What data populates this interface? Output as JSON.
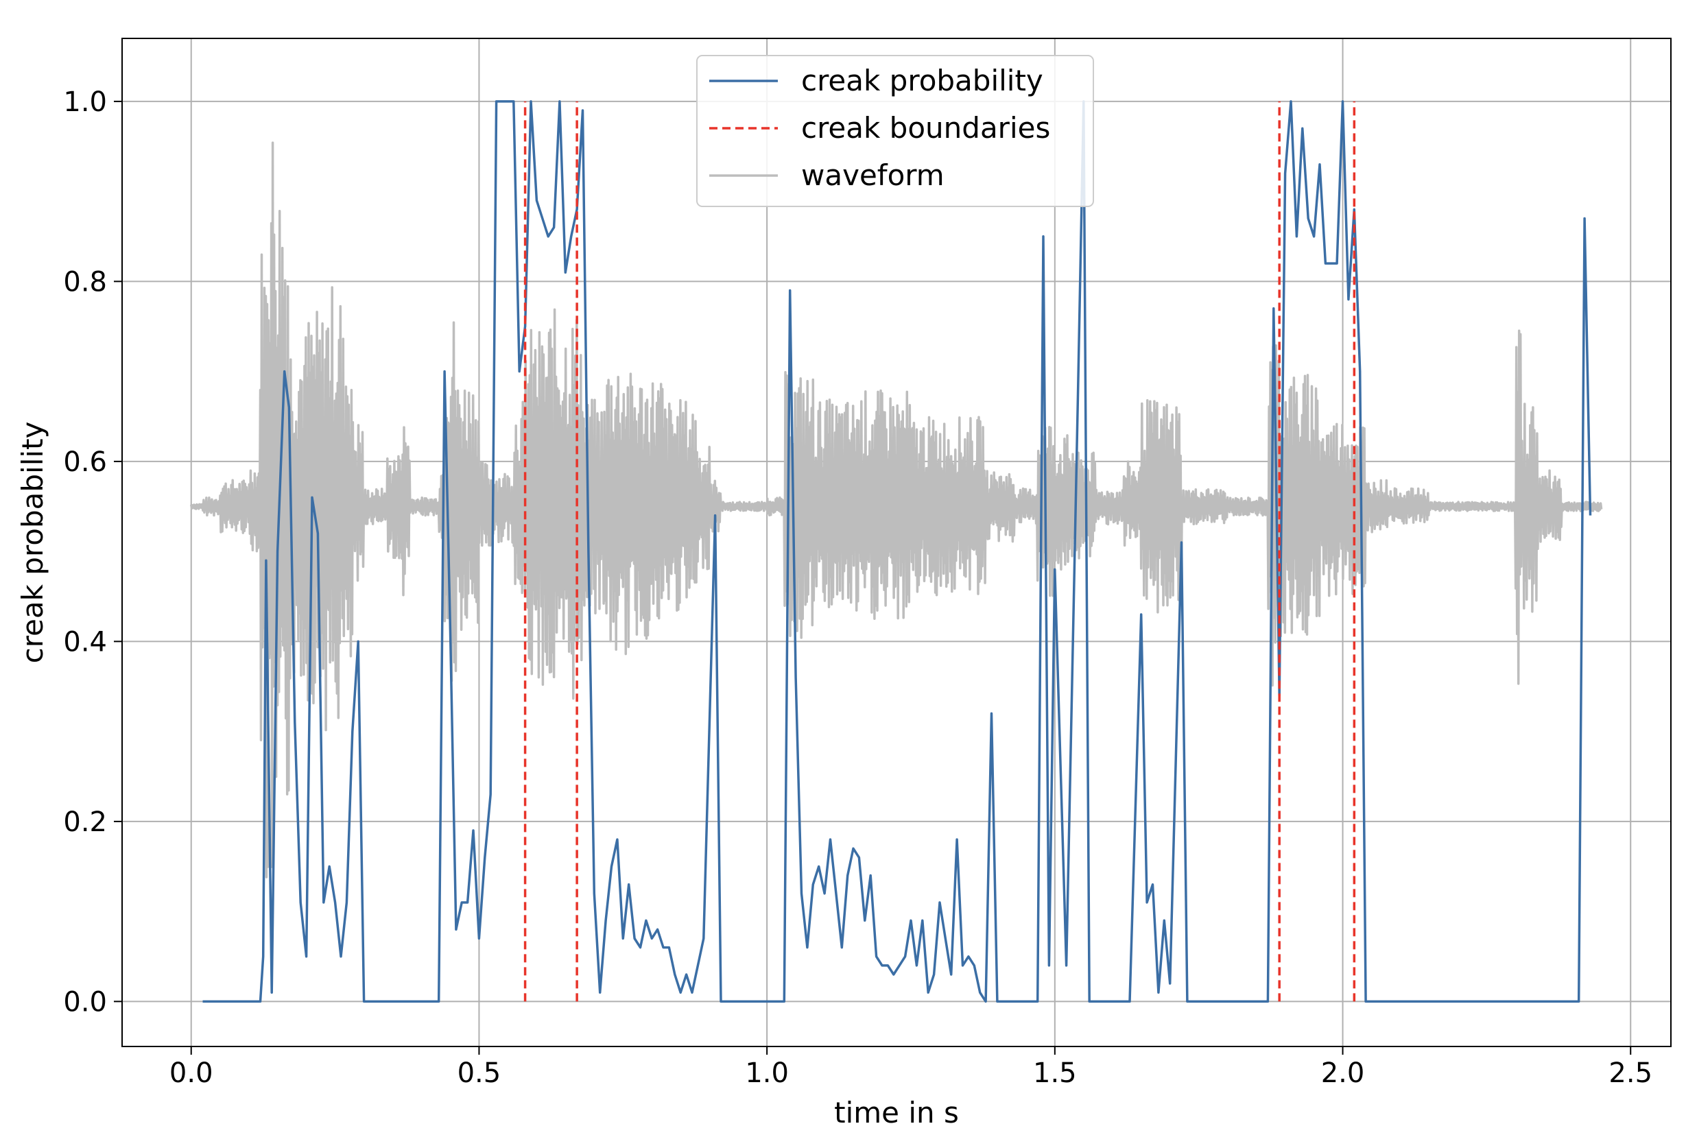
{
  "chart_data": {
    "type": "line",
    "xlabel": "time in s",
    "ylabel": "creak probability",
    "xlim": [
      -0.12,
      2.57
    ],
    "ylim": [
      -0.05,
      1.07
    ],
    "x_ticks": [
      0.0,
      0.5,
      1.0,
      1.5,
      2.0,
      2.5
    ],
    "x_tick_labels": [
      "0.0",
      "0.5",
      "1.0",
      "1.5",
      "2.0",
      "2.5"
    ],
    "y_ticks": [
      0.0,
      0.2,
      0.4,
      0.6,
      0.8,
      1.0
    ],
    "y_tick_labels": [
      "0.0",
      "0.2",
      "0.4",
      "0.6",
      "0.8",
      "1.0"
    ],
    "grid": true,
    "legend_position": "top-center",
    "legend": [
      "creak probability",
      "creak boundaries",
      "waveform"
    ],
    "series": [
      {
        "name": "creak probability",
        "style": "solid",
        "color": "#3b6ea5",
        "points": [
          [
            0.02,
            0.0
          ],
          [
            0.12,
            0.0
          ],
          [
            0.125,
            0.05
          ],
          [
            0.13,
            0.49
          ],
          [
            0.14,
            0.01
          ],
          [
            0.15,
            0.5
          ],
          [
            0.162,
            0.7
          ],
          [
            0.17,
            0.66
          ],
          [
            0.18,
            0.31
          ],
          [
            0.19,
            0.11
          ],
          [
            0.2,
            0.05
          ],
          [
            0.21,
            0.56
          ],
          [
            0.22,
            0.52
          ],
          [
            0.23,
            0.11
          ],
          [
            0.24,
            0.15
          ],
          [
            0.25,
            0.11
          ],
          [
            0.26,
            0.05
          ],
          [
            0.27,
            0.11
          ],
          [
            0.28,
            0.3
          ],
          [
            0.29,
            0.4
          ],
          [
            0.3,
            0.0
          ],
          [
            0.43,
            0.0
          ],
          [
            0.44,
            0.7
          ],
          [
            0.45,
            0.41
          ],
          [
            0.46,
            0.08
          ],
          [
            0.47,
            0.11
          ],
          [
            0.48,
            0.11
          ],
          [
            0.49,
            0.19
          ],
          [
            0.5,
            0.07
          ],
          [
            0.51,
            0.16
          ],
          [
            0.52,
            0.23
          ],
          [
            0.53,
            1.0
          ],
          [
            0.55,
            1.0
          ],
          [
            0.56,
            1.0
          ],
          [
            0.57,
            0.7
          ],
          [
            0.58,
            0.75
          ],
          [
            0.59,
            1.0
          ],
          [
            0.6,
            0.89
          ],
          [
            0.61,
            0.87
          ],
          [
            0.62,
            0.85
          ],
          [
            0.63,
            0.86
          ],
          [
            0.64,
            1.0
          ],
          [
            0.65,
            0.81
          ],
          [
            0.66,
            0.85
          ],
          [
            0.67,
            0.88
          ],
          [
            0.68,
            0.99
          ],
          [
            0.69,
            0.5
          ],
          [
            0.7,
            0.12
          ],
          [
            0.71,
            0.01
          ],
          [
            0.72,
            0.09
          ],
          [
            0.73,
            0.15
          ],
          [
            0.74,
            0.18
          ],
          [
            0.75,
            0.07
          ],
          [
            0.76,
            0.13
          ],
          [
            0.77,
            0.07
          ],
          [
            0.78,
            0.06
          ],
          [
            0.79,
            0.09
          ],
          [
            0.8,
            0.07
          ],
          [
            0.81,
            0.08
          ],
          [
            0.82,
            0.06
          ],
          [
            0.83,
            0.06
          ],
          [
            0.84,
            0.03
          ],
          [
            0.85,
            0.01
          ],
          [
            0.86,
            0.03
          ],
          [
            0.87,
            0.01
          ],
          [
            0.88,
            0.04
          ],
          [
            0.89,
            0.07
          ],
          [
            0.91,
            0.54
          ],
          [
            0.92,
            0.0
          ],
          [
            1.03,
            0.0
          ],
          [
            1.04,
            0.79
          ],
          [
            1.05,
            0.36
          ],
          [
            1.06,
            0.12
          ],
          [
            1.07,
            0.06
          ],
          [
            1.08,
            0.13
          ],
          [
            1.09,
            0.15
          ],
          [
            1.1,
            0.12
          ],
          [
            1.11,
            0.18
          ],
          [
            1.12,
            0.12
          ],
          [
            1.13,
            0.06
          ],
          [
            1.14,
            0.14
          ],
          [
            1.15,
            0.17
          ],
          [
            1.16,
            0.16
          ],
          [
            1.17,
            0.09
          ],
          [
            1.18,
            0.14
          ],
          [
            1.19,
            0.05
          ],
          [
            1.2,
            0.04
          ],
          [
            1.21,
            0.04
          ],
          [
            1.22,
            0.03
          ],
          [
            1.23,
            0.04
          ],
          [
            1.24,
            0.05
          ],
          [
            1.25,
            0.09
          ],
          [
            1.26,
            0.04
          ],
          [
            1.27,
            0.09
          ],
          [
            1.28,
            0.01
          ],
          [
            1.29,
            0.03
          ],
          [
            1.3,
            0.11
          ],
          [
            1.31,
            0.07
          ],
          [
            1.32,
            0.03
          ],
          [
            1.33,
            0.18
          ],
          [
            1.34,
            0.04
          ],
          [
            1.35,
            0.05
          ],
          [
            1.36,
            0.04
          ],
          [
            1.37,
            0.01
          ],
          [
            1.38,
            0.0
          ],
          [
            1.39,
            0.32
          ],
          [
            1.4,
            0.0
          ],
          [
            1.47,
            0.0
          ],
          [
            1.48,
            0.85
          ],
          [
            1.49,
            0.04
          ],
          [
            1.5,
            0.48
          ],
          [
            1.52,
            0.04
          ],
          [
            1.54,
            0.67
          ],
          [
            1.55,
            1.0
          ],
          [
            1.56,
            0.0
          ],
          [
            1.63,
            0.0
          ],
          [
            1.65,
            0.43
          ],
          [
            1.66,
            0.11
          ],
          [
            1.67,
            0.13
          ],
          [
            1.68,
            0.01
          ],
          [
            1.69,
            0.09
          ],
          [
            1.7,
            0.02
          ],
          [
            1.72,
            0.51
          ],
          [
            1.73,
            0.0
          ],
          [
            1.87,
            0.0
          ],
          [
            1.88,
            0.77
          ],
          [
            1.89,
            0.34
          ],
          [
            1.9,
            0.92
          ],
          [
            1.91,
            1.0
          ],
          [
            1.92,
            0.85
          ],
          [
            1.93,
            0.97
          ],
          [
            1.94,
            0.87
          ],
          [
            1.95,
            0.85
          ],
          [
            1.96,
            0.93
          ],
          [
            1.97,
            0.82
          ],
          [
            1.98,
            0.82
          ],
          [
            1.99,
            0.82
          ],
          [
            2.0,
            1.0
          ],
          [
            2.01,
            0.78
          ],
          [
            2.02,
            0.88
          ],
          [
            2.03,
            0.7
          ],
          [
            2.04,
            0.0
          ],
          [
            2.41,
            0.0
          ],
          [
            2.42,
            0.87
          ],
          [
            2.43,
            0.54
          ]
        ]
      },
      {
        "name": "creak boundaries",
        "style": "dashed",
        "color": "#e8342a",
        "x_positions": [
          0.58,
          0.67,
          1.89,
          2.02
        ]
      },
      {
        "name": "waveform",
        "style": "solid",
        "color": "#bdbdbd",
        "baseline": 0.55,
        "segments": [
          [
            0.0,
            0.02,
            0.003
          ],
          [
            0.02,
            0.05,
            0.01
          ],
          [
            0.05,
            0.1,
            0.03
          ],
          [
            0.1,
            0.12,
            0.05
          ],
          [
            0.12,
            0.13,
            0.3
          ],
          [
            0.13,
            0.15,
            0.45
          ],
          [
            0.15,
            0.17,
            0.38
          ],
          [
            0.17,
            0.2,
            0.2
          ],
          [
            0.2,
            0.23,
            0.22
          ],
          [
            0.23,
            0.26,
            0.25
          ],
          [
            0.26,
            0.28,
            0.2
          ],
          [
            0.28,
            0.3,
            0.1
          ],
          [
            0.3,
            0.34,
            0.02
          ],
          [
            0.34,
            0.36,
            0.06
          ],
          [
            0.36,
            0.38,
            0.1
          ],
          [
            0.38,
            0.43,
            0.01
          ],
          [
            0.43,
            0.44,
            0.05
          ],
          [
            0.44,
            0.46,
            0.22
          ],
          [
            0.46,
            0.5,
            0.15
          ],
          [
            0.5,
            0.52,
            0.05
          ],
          [
            0.52,
            0.56,
            0.04
          ],
          [
            0.56,
            0.58,
            0.12
          ],
          [
            0.58,
            0.62,
            0.2
          ],
          [
            0.62,
            0.68,
            0.22
          ],
          [
            0.68,
            0.72,
            0.12
          ],
          [
            0.72,
            0.76,
            0.17
          ],
          [
            0.76,
            0.82,
            0.15
          ],
          [
            0.82,
            0.88,
            0.12
          ],
          [
            0.88,
            0.9,
            0.07
          ],
          [
            0.9,
            0.92,
            0.03
          ],
          [
            0.92,
            1.0,
            0.005
          ],
          [
            1.0,
            1.03,
            0.01
          ],
          [
            1.03,
            1.08,
            0.15
          ],
          [
            1.08,
            1.15,
            0.12
          ],
          [
            1.15,
            1.25,
            0.13
          ],
          [
            1.25,
            1.3,
            0.1
          ],
          [
            1.3,
            1.38,
            0.1
          ],
          [
            1.38,
            1.43,
            0.04
          ],
          [
            1.43,
            1.47,
            0.02
          ],
          [
            1.47,
            1.5,
            0.1
          ],
          [
            1.5,
            1.54,
            0.08
          ],
          [
            1.54,
            1.57,
            0.06
          ],
          [
            1.57,
            1.62,
            0.02
          ],
          [
            1.62,
            1.65,
            0.05
          ],
          [
            1.65,
            1.72,
            0.12
          ],
          [
            1.72,
            1.8,
            0.02
          ],
          [
            1.8,
            1.87,
            0.01
          ],
          [
            1.87,
            1.89,
            0.2
          ],
          [
            1.89,
            1.96,
            0.15
          ],
          [
            1.96,
            2.04,
            0.1
          ],
          [
            2.04,
            2.08,
            0.03
          ],
          [
            2.08,
            2.15,
            0.02
          ],
          [
            2.15,
            2.3,
            0.005
          ],
          [
            2.3,
            2.31,
            0.2
          ],
          [
            2.31,
            2.34,
            0.12
          ],
          [
            2.34,
            2.38,
            0.04
          ],
          [
            2.38,
            2.45,
            0.005
          ]
        ]
      }
    ]
  }
}
